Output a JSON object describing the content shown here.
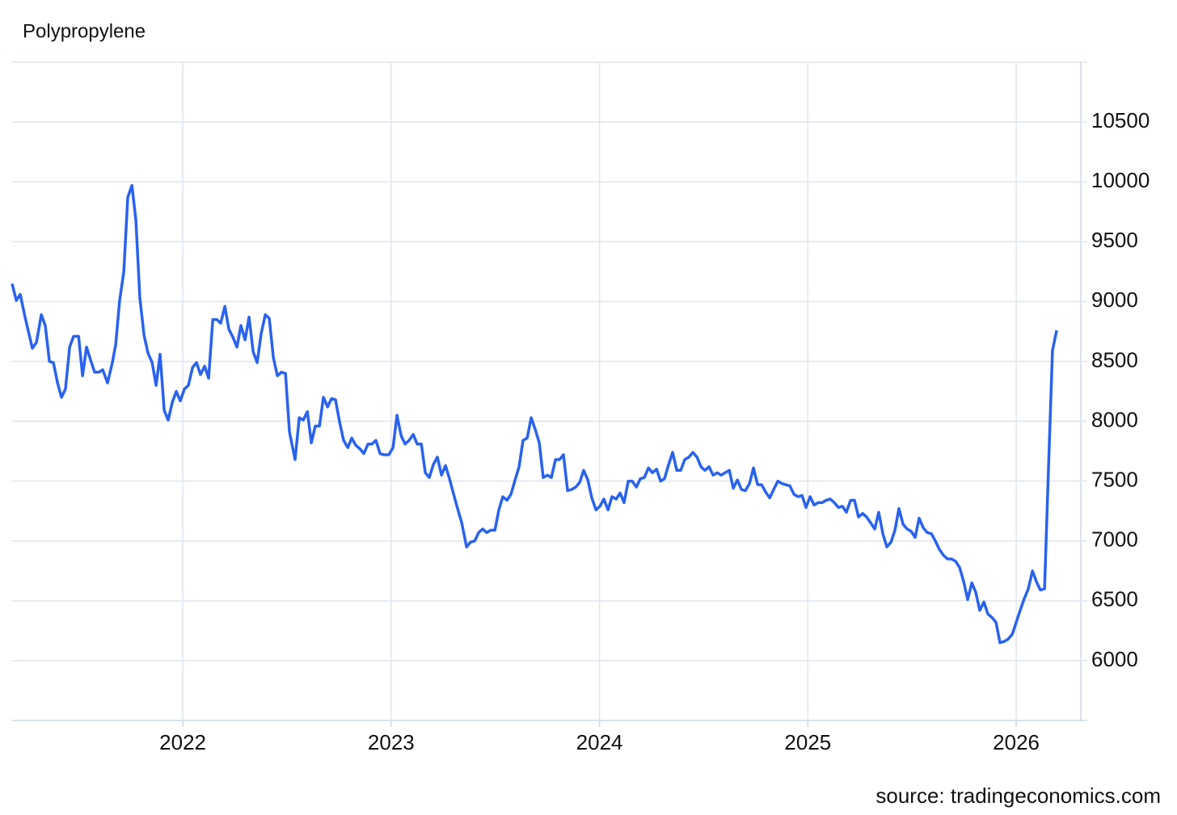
{
  "chart_data": {
    "type": "line",
    "title": "Polypropylene",
    "source": "source: tradingeconomics.com",
    "x": [
      2021.181,
      2021.201,
      2021.22,
      2021.243,
      2021.278,
      2021.298,
      2021.321,
      2021.34,
      2021.36,
      2021.379,
      2021.399,
      2021.418,
      2021.437,
      2021.457,
      2021.476,
      2021.5,
      2021.519,
      2021.538,
      2021.558,
      2021.577,
      2021.597,
      2021.616,
      2021.639,
      2021.662,
      2021.678,
      2021.697,
      2021.717,
      2021.736,
      2021.756,
      2021.775,
      2021.794,
      2021.814,
      2021.833,
      2021.853,
      2021.872,
      2021.891,
      2021.911,
      2021.93,
      2021.95,
      2021.969,
      2021.988,
      2022.008,
      2022.027,
      2022.047,
      2022.066,
      2022.085,
      2022.105,
      2022.124,
      2022.144,
      2022.163,
      2022.182,
      2022.202,
      2022.221,
      2022.241,
      2022.26,
      2022.279,
      2022.299,
      2022.318,
      2022.338,
      2022.357,
      2022.376,
      2022.396,
      2022.415,
      2022.435,
      2022.454,
      2022.473,
      2022.493,
      2022.512,
      2022.539,
      2022.559,
      2022.578,
      2022.598,
      2022.617,
      2022.636,
      2022.656,
      2022.675,
      2022.695,
      2022.714,
      2022.733,
      2022.753,
      2022.772,
      2022.792,
      2022.811,
      2022.83,
      2022.85,
      2022.869,
      2022.889,
      2022.908,
      2022.927,
      2022.947,
      2022.966,
      2022.989,
      2023.009,
      2023.028,
      2023.048,
      2023.067,
      2023.086,
      2023.106,
      2023.125,
      2023.145,
      2023.164,
      2023.183,
      2023.203,
      2023.222,
      2023.242,
      2023.261,
      2023.28,
      2023.3,
      2023.319,
      2023.339,
      2023.362,
      2023.381,
      2023.401,
      2023.42,
      2023.439,
      2023.459,
      2023.478,
      2023.498,
      2023.517,
      2023.536,
      2023.556,
      2023.575,
      2023.595,
      2023.614,
      2023.633,
      2023.653,
      2023.672,
      2023.692,
      2023.711,
      2023.73,
      2023.75,
      2023.769,
      2023.789,
      2023.808,
      2023.827,
      2023.847,
      2023.866,
      2023.886,
      2023.905,
      2023.924,
      2023.944,
      2023.963,
      2023.983,
      2024.002,
      2024.021,
      2024.041,
      2024.06,
      2024.08,
      2024.099,
      2024.118,
      2024.138,
      2024.157,
      2024.177,
      2024.196,
      2024.215,
      2024.235,
      2024.254,
      2024.274,
      2024.293,
      2024.312,
      2024.332,
      2024.351,
      2024.371,
      2024.39,
      2024.409,
      2024.429,
      2024.448,
      2024.468,
      2024.487,
      2024.506,
      2024.526,
      2024.545,
      2024.565,
      2024.584,
      2024.603,
      2024.623,
      2024.642,
      2024.662,
      2024.681,
      2024.7,
      2024.72,
      2024.739,
      2024.759,
      2024.778,
      2024.797,
      2024.817,
      2024.836,
      2024.856,
      2024.875,
      2024.894,
      2024.914,
      2024.933,
      2024.953,
      2024.972,
      2024.991,
      2025.011,
      2025.03,
      2025.05,
      2025.069,
      2025.088,
      2025.108,
      2025.127,
      2025.147,
      2025.166,
      2025.185,
      2025.205,
      2025.224,
      2025.243,
      2025.263,
      2025.282,
      2025.302,
      2025.321,
      2025.34,
      2025.36,
      2025.379,
      2025.399,
      2025.418,
      2025.437,
      2025.457,
      2025.476,
      2025.496,
      2025.515,
      2025.534,
      2025.554,
      2025.573,
      2025.593,
      2025.612,
      2025.631,
      2025.651,
      2025.67,
      2025.69,
      2025.709,
      2025.728,
      2025.748,
      2025.767,
      2025.787,
      2025.806,
      2025.825,
      2025.845,
      2025.864,
      2025.884,
      2025.903,
      2025.922,
      2025.942,
      2025.961,
      2025.981,
      2026.0,
      2026.019,
      2026.039,
      2026.058,
      2026.078,
      2026.097,
      2026.116,
      2026.136,
      2026.155,
      2026.174,
      2026.194
    ],
    "series": [
      {
        "name": "Polypropylene",
        "color": "#2962ef",
        "values": [
          9150,
          9010,
          9060,
          8870,
          8610,
          8660,
          8890,
          8800,
          8500,
          8490,
          8320,
          8200,
          8270,
          8620,
          8710,
          8710,
          8380,
          8620,
          8510,
          8410,
          8410,
          8430,
          8320,
          8490,
          8640,
          9010,
          9250,
          9870,
          9970,
          9680,
          9030,
          8720,
          8570,
          8490,
          8300,
          8560,
          8090,
          8010,
          8160,
          8250,
          8170,
          8270,
          8300,
          8450,
          8490,
          8390,
          8460,
          8360,
          8850,
          8850,
          8820,
          8960,
          8770,
          8700,
          8620,
          8800,
          8680,
          8870,
          8580,
          8490,
          8730,
          8890,
          8860,
          8530,
          8380,
          8410,
          8400,
          7910,
          7680,
          8030,
          8010,
          8080,
          7820,
          7960,
          7960,
          8200,
          8120,
          8190,
          8180,
          7990,
          7840,
          7780,
          7860,
          7800,
          7770,
          7730,
          7810,
          7810,
          7840,
          7730,
          7720,
          7720,
          7780,
          8050,
          7880,
          7810,
          7840,
          7890,
          7810,
          7810,
          7570,
          7530,
          7640,
          7700,
          7550,
          7630,
          7520,
          7390,
          7270,
          7150,
          6950,
          6990,
          7000,
          7070,
          7100,
          7070,
          7090,
          7090,
          7260,
          7370,
          7340,
          7390,
          7510,
          7620,
          7840,
          7860,
          8030,
          7930,
          7820,
          7530,
          7550,
          7530,
          7680,
          7680,
          7720,
          7420,
          7430,
          7450,
          7490,
          7590,
          7510,
          7360,
          7260,
          7290,
          7350,
          7260,
          7370,
          7350,
          7400,
          7320,
          7500,
          7500,
          7450,
          7520,
          7530,
          7610,
          7570,
          7600,
          7500,
          7520,
          7640,
          7740,
          7590,
          7590,
          7680,
          7700,
          7740,
          7700,
          7620,
          7590,
          7620,
          7550,
          7570,
          7550,
          7570,
          7590,
          7440,
          7510,
          7430,
          7420,
          7480,
          7610,
          7470,
          7470,
          7410,
          7360,
          7430,
          7500,
          7480,
          7470,
          7460,
          7390,
          7370,
          7380,
          7280,
          7370,
          7300,
          7320,
          7320,
          7340,
          7350,
          7320,
          7280,
          7290,
          7240,
          7340,
          7340,
          7200,
          7230,
          7200,
          7150,
          7100,
          7240,
          7060,
          6950,
          6990,
          7090,
          7270,
          7140,
          7100,
          7080,
          7030,
          7190,
          7110,
          7070,
          7060,
          7000,
          6930,
          6880,
          6850,
          6850,
          6830,
          6780,
          6660,
          6510,
          6650,
          6570,
          6420,
          6490,
          6390,
          6360,
          6320,
          6150,
          6160,
          6180,
          6220,
          6320,
          6420,
          6520,
          6600,
          6750,
          6660,
          6590,
          6600,
          7610,
          8590,
          8760
        ]
      }
    ],
    "xlim": [
      2021.181,
      2026.31
    ],
    "xticks": [
      2022,
      2023,
      2024,
      2025,
      2026
    ],
    "ylim": [
      5500,
      11000
    ],
    "yticks": [
      6000,
      6500,
      7000,
      7500,
      8000,
      8500,
      9000,
      9500,
      10000,
      10500
    ],
    "grid": true
  }
}
